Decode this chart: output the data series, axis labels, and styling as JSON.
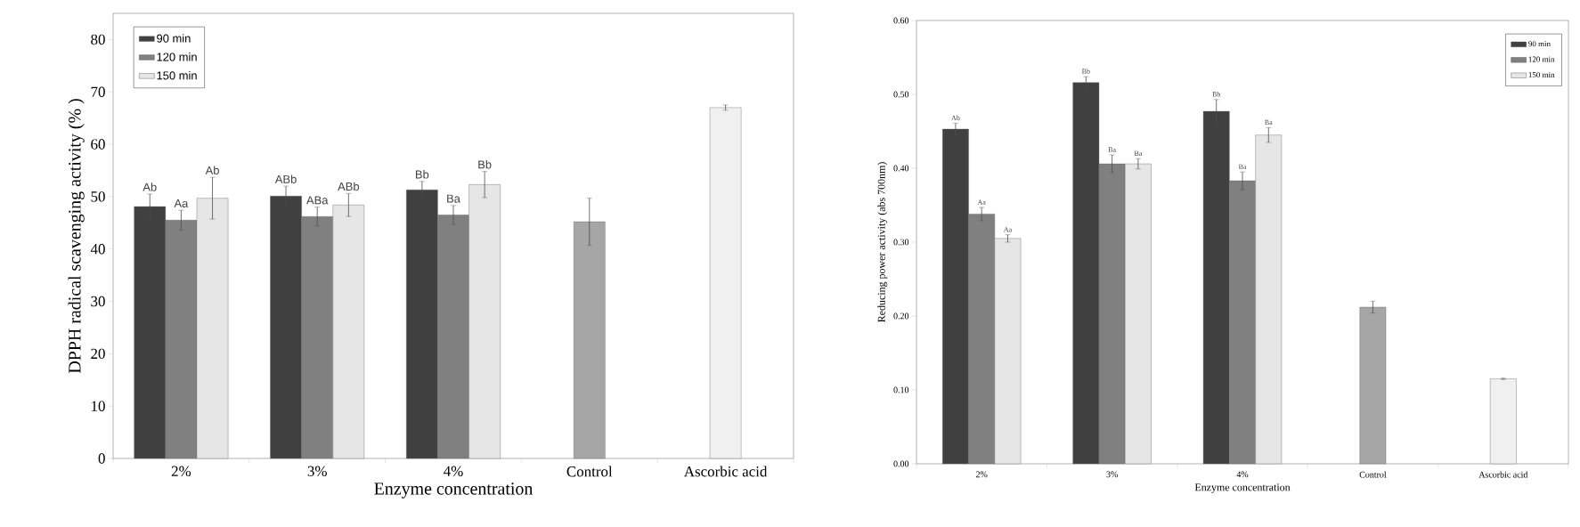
{
  "chart_data": [
    {
      "type": "bar",
      "xlabel": "Enzyme concentration",
      "ylabel": "DPPH radical scavenging activity (% )",
      "categories": [
        "2%",
        "3%",
        "4%",
        "Control",
        "Ascorbic acid"
      ],
      "ylim": [
        0,
        85
      ],
      "yticks": [
        0,
        10,
        20,
        30,
        40,
        50,
        60,
        70,
        80
      ],
      "legend": "top left",
      "series": [
        {
          "name": "90 min",
          "color": "#404040",
          "values": [
            48.1,
            50.1,
            51.3,
            null,
            null
          ],
          "errors": [
            2.4,
            1.9,
            1.6,
            null,
            null
          ],
          "value_labels": [
            "Ab",
            "ABb",
            "Bb",
            null,
            null
          ]
        },
        {
          "name": "120 min",
          "color": "#808080",
          "values": [
            45.5,
            46.2,
            46.5,
            null,
            null
          ],
          "errors": [
            1.9,
            1.8,
            1.8,
            null,
            null
          ],
          "value_labels": [
            "Aa",
            "ABa",
            "Ba",
            null,
            null
          ]
        },
        {
          "name": "150 min",
          "color": "#e6e6e6",
          "values": [
            49.7,
            48.4,
            52.3,
            null,
            null
          ],
          "errors": [
            4.0,
            2.2,
            2.5,
            null,
            null
          ],
          "value_labels": [
            "Ab",
            "ABb",
            "Bb",
            null,
            null
          ]
        },
        {
          "color": "#a6a6a6",
          "values": [
            null,
            null,
            null,
            45.2,
            null
          ],
          "errors": [
            null,
            null,
            null,
            4.5,
            null
          ]
        },
        {
          "color": "#f0f0f0",
          "values": [
            null,
            null,
            null,
            null,
            67.0
          ],
          "errors": [
            null,
            null,
            null,
            null,
            0.5
          ]
        }
      ]
    },
    {
      "type": "bar",
      "xlabel": "Enzyme concentration",
      "ylabel": "Reducing power activity (abs 700nm)",
      "categories": [
        "2%",
        "3%",
        "4%",
        "Control",
        "Ascorbic acid"
      ],
      "ylim": [
        0,
        0.6
      ],
      "yticks": [
        {
          "value": 0,
          "label": "0.00"
        },
        {
          "value": 0.1,
          "label": "0.10"
        },
        {
          "value": 0.2,
          "label": "0.20"
        },
        {
          "value": 0.3,
          "label": "0.30"
        },
        {
          "value": 0.4,
          "label": "0.40"
        },
        {
          "value": 0.5,
          "label": "0.50"
        },
        {
          "value": 0.6,
          "label": "0.60"
        }
      ],
      "legend": "top right",
      "series": [
        {
          "name": "90 min",
          "color": "#404040",
          "values": [
            0.453,
            0.516,
            0.477,
            null,
            null
          ],
          "errors": [
            0.008,
            0.008,
            0.016,
            null,
            null
          ],
          "value_labels": [
            "Ab",
            "Bb",
            "Bb",
            null,
            null
          ]
        },
        {
          "name": "120 min",
          "color": "#808080",
          "values": [
            0.338,
            0.406,
            0.383,
            null,
            null
          ],
          "errors": [
            0.009,
            0.012,
            0.012,
            null,
            null
          ],
          "value_labels": [
            "Aa",
            "Ba",
            "Ba",
            null,
            null
          ]
        },
        {
          "name": "150 min",
          "color": "#e6e6e6",
          "values": [
            0.305,
            0.406,
            0.445,
            null,
            null
          ],
          "errors": [
            0.005,
            0.007,
            0.01,
            null,
            null
          ],
          "value_labels": [
            "Aa",
            "Ba",
            "Ba",
            null,
            null
          ]
        },
        {
          "color": "#a6a6a6",
          "values": [
            null,
            null,
            null,
            0.212,
            null
          ],
          "errors": [
            null,
            null,
            null,
            0.008,
            null
          ]
        },
        {
          "color": "#f0f0f0",
          "values": [
            null,
            null,
            null,
            null,
            0.115
          ],
          "errors": [
            null,
            null,
            null,
            null,
            0.001
          ]
        }
      ]
    }
  ]
}
